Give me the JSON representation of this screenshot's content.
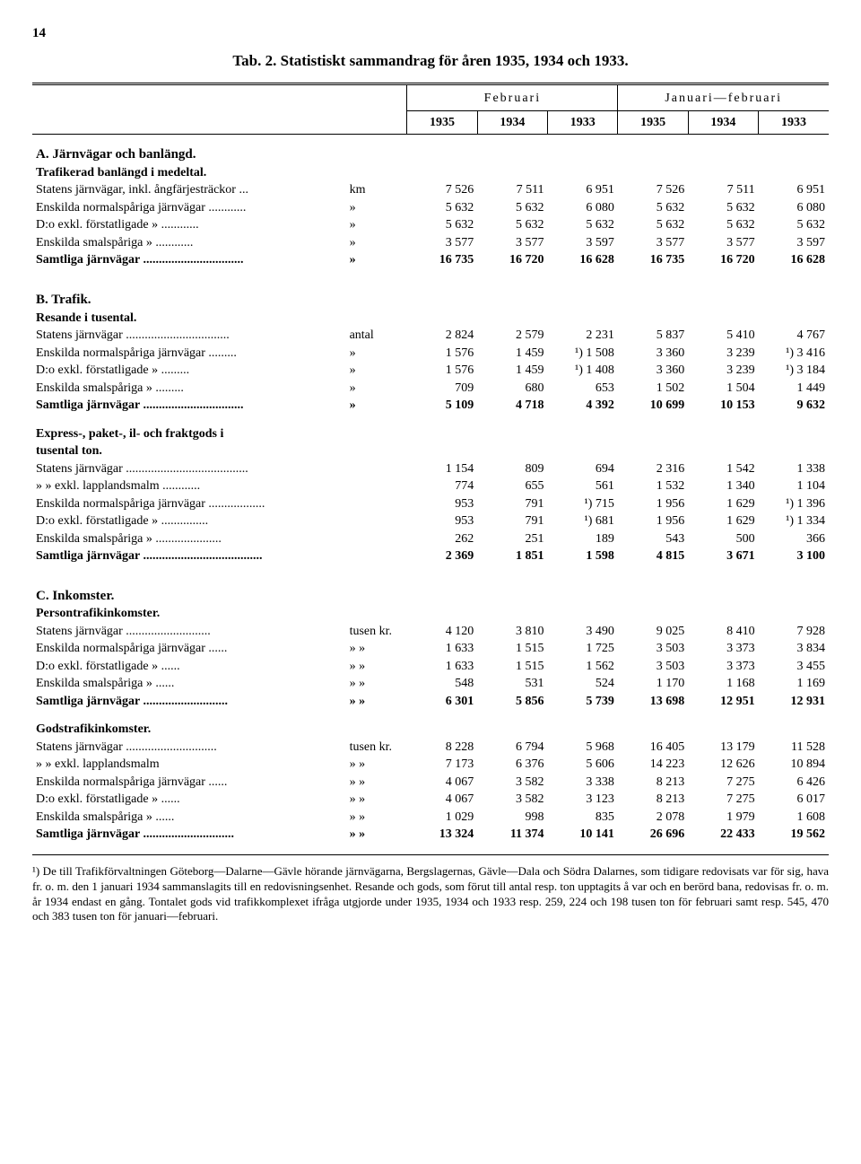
{
  "page_number": "14",
  "title": "Tab. 2.  Statistiskt sammandrag för åren 1935, 1934 och 1933.",
  "header_group_1": "Februari",
  "header_group_2": "Januari—februari",
  "years": [
    "1935",
    "1934",
    "1933",
    "1935",
    "1934",
    "1933"
  ],
  "sectionA": {
    "letter": "A.  Järnvägar och banlängd.",
    "sub": "Trafikerad banlängd i medeltal.",
    "rows": [
      {
        "label": "Statens järnvägar, inkl. ångfärjesträckor ...",
        "unit": "km",
        "v": [
          "7 526",
          "7 511",
          "6 951",
          "7 526",
          "7 511",
          "6 951"
        ]
      },
      {
        "label": "Enskilda normalspåriga järnvägar ............",
        "unit": "»",
        "v": [
          "5 632",
          "5 632",
          "6 080",
          "5 632",
          "5 632",
          "6 080"
        ]
      },
      {
        "label": "D:o exkl. förstatligade        »        ............",
        "unit": "»",
        "v": [
          "5 632",
          "5 632",
          "5 632",
          "5 632",
          "5 632",
          "5 632"
        ]
      },
      {
        "label": "Enskilda smalspåriga        »        ............",
        "unit": "»",
        "v": [
          "3 577",
          "3 577",
          "3 597",
          "3 577",
          "3 577",
          "3 597"
        ]
      },
      {
        "label": "Samtliga järnvägar ................................",
        "unit": "»",
        "v": [
          "16 735",
          "16 720",
          "16 628",
          "16 735",
          "16 720",
          "16 628"
        ],
        "bold": true
      }
    ]
  },
  "sectionB": {
    "letter": "B.  Trafik.",
    "sub1": "Resande i tusental.",
    "rows1": [
      {
        "label": "Statens järnvägar .................................",
        "unit": "antal",
        "v": [
          "2 824",
          "2 579",
          "2 231",
          "5 837",
          "5 410",
          "4 767"
        ]
      },
      {
        "label": "Enskilda normalspåriga järnvägar .........",
        "unit": "»",
        "v": [
          "1 576",
          "1 459",
          "¹) 1 508",
          "3 360",
          "3 239",
          "¹) 3 416"
        ]
      },
      {
        "label": "D:o exkl. förstatligade        »        .........",
        "unit": "»",
        "v": [
          "1 576",
          "1 459",
          "¹) 1 408",
          "3 360",
          "3 239",
          "¹) 3 184"
        ]
      },
      {
        "label": "Enskilda smalspåriga        »        .........",
        "unit": "»",
        "v": [
          "709",
          "680",
          "653",
          "1 502",
          "1 504",
          "1 449"
        ]
      },
      {
        "label": "Samtliga järnvägar ................................",
        "unit": "»",
        "v": [
          "5 109",
          "4 718",
          "4 392",
          "10 699",
          "10 153",
          "9 632"
        ],
        "bold": true
      }
    ],
    "sub2a": "Express-, paket-, il- och fraktgods i",
    "sub2b": "tusental ton.",
    "rows2": [
      {
        "label": "Statens järnvägar .......................................",
        "unit": "",
        "v": [
          "1 154",
          "809",
          "694",
          "2 316",
          "1 542",
          "1 338"
        ]
      },
      {
        "label": "    »        »     exkl. lapplandsmalm ............",
        "unit": "",
        "v": [
          "774",
          "655",
          "561",
          "1 532",
          "1 340",
          "1 104"
        ]
      },
      {
        "label": "Enskilda normalspåriga järnvägar ..................",
        "unit": "",
        "v": [
          "953",
          "791",
          "¹) 715",
          "1 956",
          "1 629",
          "¹) 1 396"
        ]
      },
      {
        "label": "D:o exkl. förstatligade        »        ...............",
        "unit": "",
        "v": [
          "953",
          "791",
          "¹) 681",
          "1 956",
          "1 629",
          "¹) 1 334"
        ]
      },
      {
        "label": "Enskilda smalspåriga        »        .....................",
        "unit": "",
        "v": [
          "262",
          "251",
          "189",
          "543",
          "500",
          "366"
        ]
      },
      {
        "label": "Samtliga järnvägar ......................................",
        "unit": "",
        "v": [
          "2 369",
          "1 851",
          "1 598",
          "4 815",
          "3 671",
          "3 100"
        ],
        "bold": true
      }
    ]
  },
  "sectionC": {
    "letter": "C.  Inkomster.",
    "sub1": "Persontrafikinkomster.",
    "rows1": [
      {
        "label": "Statens järnvägar ...........................",
        "unit": "tusen kr.",
        "v": [
          "4 120",
          "3 810",
          "3 490",
          "9 025",
          "8 410",
          "7 928"
        ]
      },
      {
        "label": "Enskilda normalspåriga järnvägar ......",
        "unit": "»    »",
        "v": [
          "1 633",
          "1 515",
          "1 725",
          "3 503",
          "3 373",
          "3 834"
        ]
      },
      {
        "label": "D:o exkl. förstatligade        »        ......",
        "unit": "»    »",
        "v": [
          "1 633",
          "1 515",
          "1 562",
          "3 503",
          "3 373",
          "3 455"
        ]
      },
      {
        "label": "Enskilda smalspåriga        »        ......",
        "unit": "»    »",
        "v": [
          "548",
          "531",
          "524",
          "1 170",
          "1 168",
          "1 169"
        ]
      },
      {
        "label": "Samtliga järnvägar ...........................",
        "unit": "»    »",
        "v": [
          "6 301",
          "5 856",
          "5 739",
          "13 698",
          "12 951",
          "12 931"
        ],
        "bold": true
      }
    ],
    "sub2": "Godstrafikinkomster.",
    "rows2": [
      {
        "label": "Statens järnvägar .............................",
        "unit": "tusen kr.",
        "v": [
          "8 228",
          "6 794",
          "5 968",
          "16 405",
          "13 179",
          "11 528"
        ]
      },
      {
        "label": "    »        »     exkl. lapplandsmalm",
        "unit": "»    »",
        "v": [
          "7 173",
          "6 376",
          "5 606",
          "14 223",
          "12 626",
          "10 894"
        ]
      },
      {
        "label": "Enskilda normalspåriga järnvägar ......",
        "unit": "»    »",
        "v": [
          "4 067",
          "3 582",
          "3 338",
          "8 213",
          "7 275",
          "6 426"
        ]
      },
      {
        "label": "D:o exkl. förstatligade        »        ......",
        "unit": "»    »",
        "v": [
          "4 067",
          "3 582",
          "3 123",
          "8 213",
          "7 275",
          "6 017"
        ]
      },
      {
        "label": "Enskilda smalspåriga        »        ......",
        "unit": "»    »",
        "v": [
          "1 029",
          "998",
          "835",
          "2 078",
          "1 979",
          "1 608"
        ]
      },
      {
        "label": "Samtliga järnvägar .............................",
        "unit": "»    »",
        "v": [
          "13 324",
          "11 374",
          "10 141",
          "26 696",
          "22 433",
          "19 562"
        ],
        "bold": true
      }
    ]
  },
  "footnote": "¹) De till Trafikförvaltningen Göteborg—Dalarne—Gävle hörande järnvägarna, Bergslagernas, Gävle—Dala och Södra Dalarnes, som tidigare redovisats var för sig, hava fr. o. m. den 1 januari 1934 sammanslagits till en redovisningsenhet. Resande och gods, som förut till antal resp. ton upptagits å var och en berörd bana, redovisas fr. o. m. år 1934 endast en gång. Tontalet gods vid trafikkomplexet ifråga utgjorde under 1935, 1934 och 1933 resp. 259, 224 och 198 tusen ton för februari samt resp. 545, 470 och 383 tusen ton för januari—februari."
}
